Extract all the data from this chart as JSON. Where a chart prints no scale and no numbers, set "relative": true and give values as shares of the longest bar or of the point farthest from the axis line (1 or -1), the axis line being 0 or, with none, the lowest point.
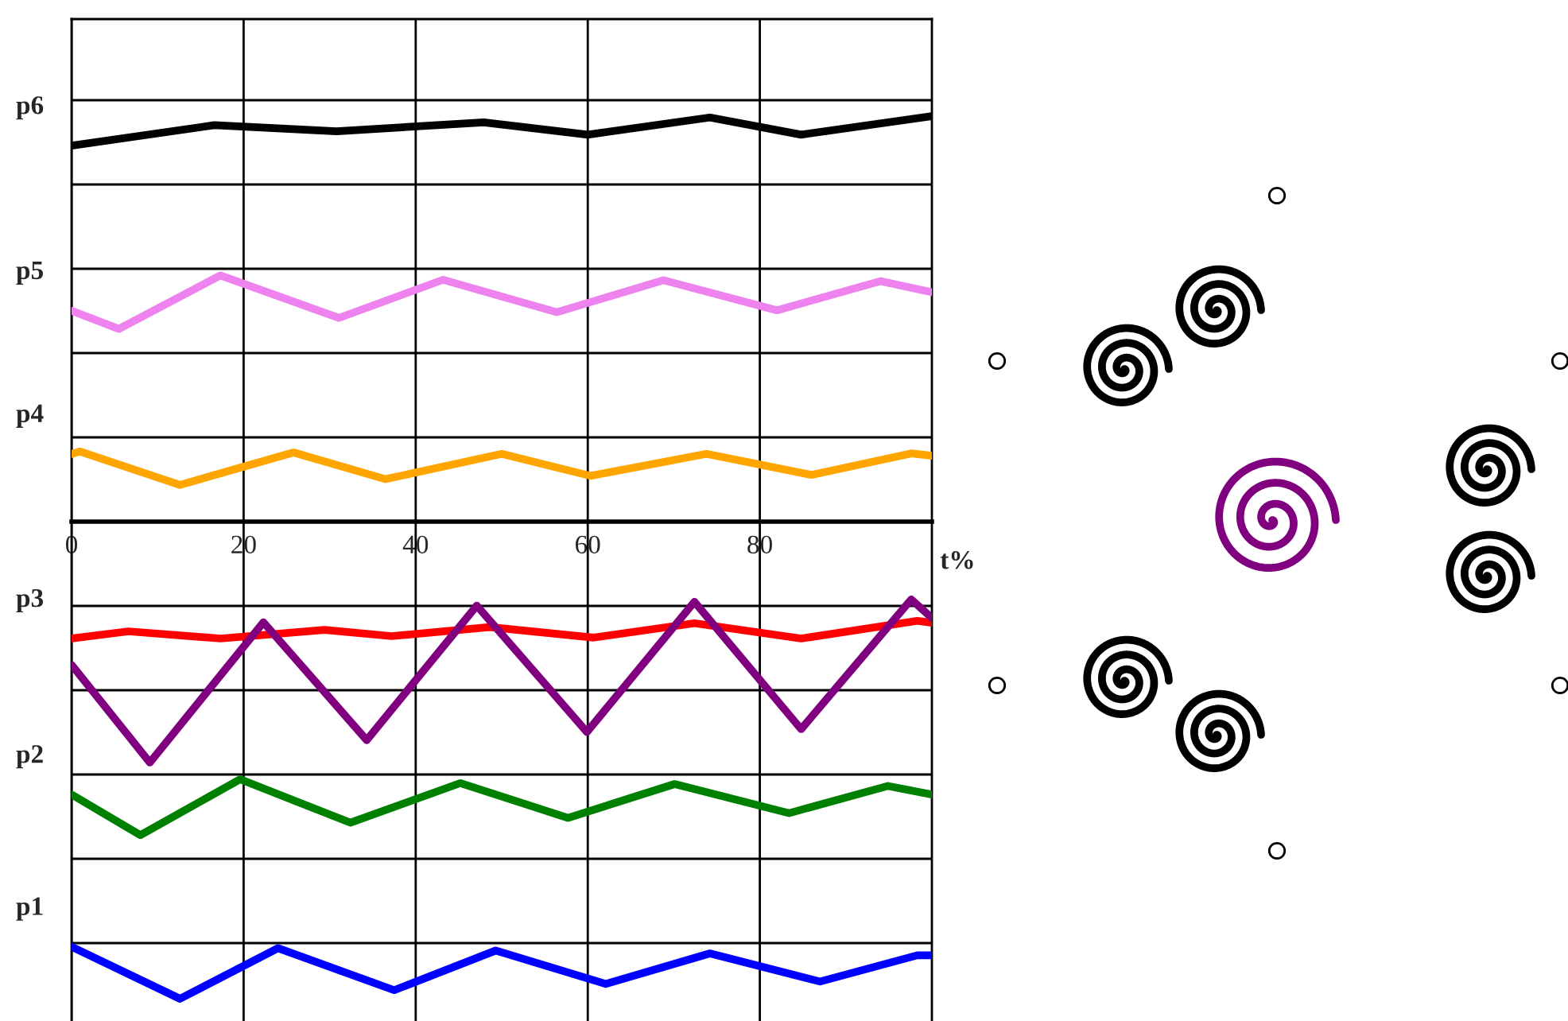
{
  "chart_data": {
    "type": "line",
    "relative": true,
    "xlabel": "t%",
    "xlim": [
      0,
      100
    ],
    "xticks": [
      0,
      20,
      40,
      60,
      80
    ],
    "grid": true,
    "legend": false,
    "marker": "none",
    "line_style": "solid",
    "series": [
      {
        "name": "p6",
        "color": "#000000",
        "x": [
          0,
          16.6,
          30.8,
          47.9,
          60,
          74.2,
          84.8,
          100
        ],
        "values": [
          0.788,
          0.831,
          0.818,
          0.837,
          0.811,
          0.847,
          0.811,
          0.85
        ]
      },
      {
        "name": "p5",
        "color": "#ee82ee",
        "x": [
          0,
          5.5,
          17.3,
          31.1,
          43.2,
          56.4,
          68.8,
          82,
          94,
          100
        ],
        "values": [
          0.442,
          0.404,
          0.516,
          0.427,
          0.507,
          0.439,
          0.506,
          0.443,
          0.504,
          0.481
        ]
      },
      {
        "name": "p4",
        "color": "#ffa500",
        "x": [
          0,
          1,
          12.6,
          25.8,
          36.5,
          50,
          60.3,
          73.8,
          86,
          97.6,
          100
        ],
        "values": [
          0.142,
          0.147,
          0.077,
          0.145,
          0.089,
          0.142,
          0.096,
          0.142,
          0.098,
          0.143,
          0.138
        ]
      },
      {
        "name": "p3",
        "color": "#ff0000",
        "x": [
          0,
          6.6,
          17.3,
          29.4,
          37.2,
          48.6,
          60.7,
          72.4,
          84.8,
          98.3,
          100
        ],
        "values": [
          -0.245,
          -0.23,
          -0.245,
          -0.227,
          -0.24,
          -0.221,
          -0.243,
          -0.213,
          -0.245,
          -0.208,
          -0.212
        ]
      },
      {
        "color": "#800080",
        "x": [
          0,
          9.1,
          22.3,
          34.3,
          47.1,
          59.9,
          72.4,
          84.8,
          97.6,
          100
        ],
        "values": [
          -0.3,
          -0.505,
          -0.211,
          -0.458,
          -0.176,
          -0.441,
          -0.168,
          -0.435,
          -0.163,
          -0.202
        ]
      },
      {
        "name": "p2",
        "color": "#008000",
        "x": [
          0,
          8,
          19.6,
          32.4,
          45.2,
          57.7,
          70.1,
          83.4,
          94.9,
          100
        ],
        "values": [
          -0.572,
          -0.657,
          -0.54,
          -0.631,
          -0.548,
          -0.621,
          -0.55,
          -0.611,
          -0.554,
          -0.572
        ]
      },
      {
        "name": "p1",
        "color": "#0000ff",
        "x": [
          0,
          12.6,
          24,
          37.5,
          49.3,
          62.1,
          74.2,
          87,
          98.3,
          100
        ],
        "values": [
          -0.891,
          -1,
          -0.894,
          -0.982,
          -0.899,
          -0.969,
          -0.905,
          -0.964,
          -0.909,
          -0.909
        ]
      }
    ]
  }
}
